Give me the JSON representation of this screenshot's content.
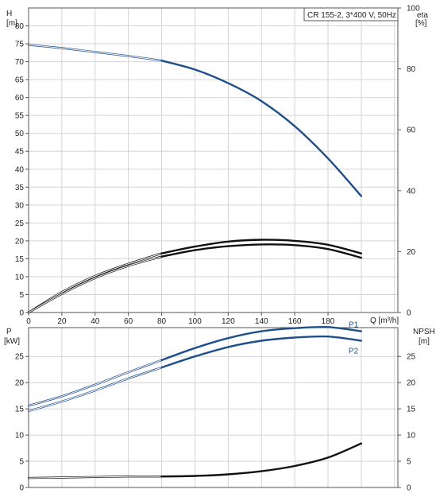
{
  "chart_data": [
    {
      "panel": "head-efficiency",
      "type": "line",
      "legend_text": "CR 155-2, 3*400 V, 50Hz",
      "legend_placement": "top-right",
      "grid": true,
      "y_left_label_line1": "H",
      "y_left_label_line2": "[m]",
      "y_right_label_line1": "eta",
      "y_right_label_line2": "[%]",
      "x_label": "Q [m³/h]",
      "xlim": [
        0,
        222
      ],
      "ylim_left": [
        0,
        85
      ],
      "ylim_right": [
        0,
        100
      ],
      "x_ticks": [
        "0",
        "20",
        "40",
        "60",
        "80",
        "100",
        "120",
        "140",
        "160",
        "180"
      ],
      "x_tick_values": [
        0,
        20,
        40,
        60,
        80,
        100,
        120,
        140,
        160,
        180
      ],
      "y_left_ticks": [
        "0",
        "5",
        "10",
        "15",
        "20",
        "25",
        "30",
        "35",
        "40",
        "45",
        "50",
        "55",
        "60",
        "65",
        "70",
        "75",
        "80"
      ],
      "y_left_tick_values": [
        0,
        5,
        10,
        15,
        20,
        25,
        30,
        35,
        40,
        45,
        50,
        55,
        60,
        65,
        70,
        75,
        80
      ],
      "y_right_ticks": [
        "0",
        "20",
        "40",
        "60",
        "80",
        "100"
      ],
      "y_right_tick_values": [
        0,
        20,
        40,
        60,
        80,
        100
      ],
      "series": [
        {
          "id": "H",
          "color": "#1f4e8c",
          "axis": "left",
          "x": [
            0,
            20,
            40,
            60,
            80,
            100,
            120,
            140,
            160,
            180,
            200
          ],
          "values": [
            74.7,
            73.8,
            72.7,
            71.6,
            70.3,
            67.8,
            64.0,
            59.0,
            52.0,
            43.0,
            32.5
          ]
        },
        {
          "id": "eta-upper",
          "color": "#111111",
          "axis": "left",
          "x": [
            0,
            20,
            40,
            60,
            80,
            100,
            120,
            140,
            160,
            180,
            200
          ],
          "values": [
            0,
            5.7,
            10.2,
            13.6,
            16.5,
            18.4,
            19.8,
            20.3,
            20.0,
            18.9,
            16.5
          ]
        },
        {
          "id": "eta-lower",
          "color": "#111111",
          "axis": "left",
          "x": [
            0,
            20,
            40,
            60,
            80,
            100,
            120,
            140,
            160,
            180,
            200
          ],
          "values": [
            0,
            5.2,
            9.6,
            13.0,
            15.6,
            17.4,
            18.5,
            19.0,
            18.8,
            17.7,
            15.3
          ]
        }
      ]
    },
    {
      "panel": "power-npsh",
      "type": "line",
      "grid": true,
      "y_left_label_line1": "P",
      "y_left_label_line2": "[kW]",
      "y_right_label_line1": "NPSH",
      "y_right_label_line2": "[m]",
      "xlim": [
        0,
        222
      ],
      "ylim_left": [
        0,
        30.5
      ],
      "ylim_right": [
        0,
        30.5
      ],
      "y_left_ticks": [
        "0",
        "5",
        "10",
        "15",
        "20",
        "25"
      ],
      "y_left_tick_values": [
        0,
        5,
        10,
        15,
        20,
        25
      ],
      "y_right_ticks": [
        "0",
        "5",
        "10",
        "15",
        "20",
        "25"
      ],
      "y_right_tick_values": [
        0,
        5,
        10,
        15,
        20,
        25
      ],
      "series": [
        {
          "name": "P1",
          "color": "#1f4e8c",
          "axis": "left",
          "x": [
            0,
            20,
            40,
            60,
            80,
            100,
            120,
            140,
            160,
            180,
            200
          ],
          "values": [
            15.6,
            17.4,
            19.6,
            22.0,
            24.3,
            26.6,
            28.5,
            29.8,
            30.4,
            30.6,
            29.8
          ]
        },
        {
          "name": "P2",
          "color": "#1f4e8c",
          "axis": "left",
          "x": [
            0,
            20,
            40,
            60,
            80,
            100,
            120,
            140,
            160,
            180,
            200
          ],
          "values": [
            14.6,
            16.4,
            18.5,
            20.8,
            22.9,
            25.0,
            26.8,
            28.0,
            28.6,
            28.8,
            28.0
          ]
        },
        {
          "id": "NPSH",
          "color": "#111111",
          "axis": "right",
          "x": [
            0,
            20,
            40,
            60,
            80,
            100,
            120,
            140,
            160,
            180,
            200
          ],
          "values": [
            1.8,
            1.9,
            2.0,
            2.1,
            2.1,
            2.2,
            2.5,
            3.1,
            4.1,
            5.7,
            8.4
          ]
        }
      ]
    }
  ],
  "colors": {
    "head": "#1f4e8c",
    "power": "#1f4e8c",
    "efficiency": "#111111",
    "npsh": "#111111",
    "grid": "#d4d4d4"
  }
}
